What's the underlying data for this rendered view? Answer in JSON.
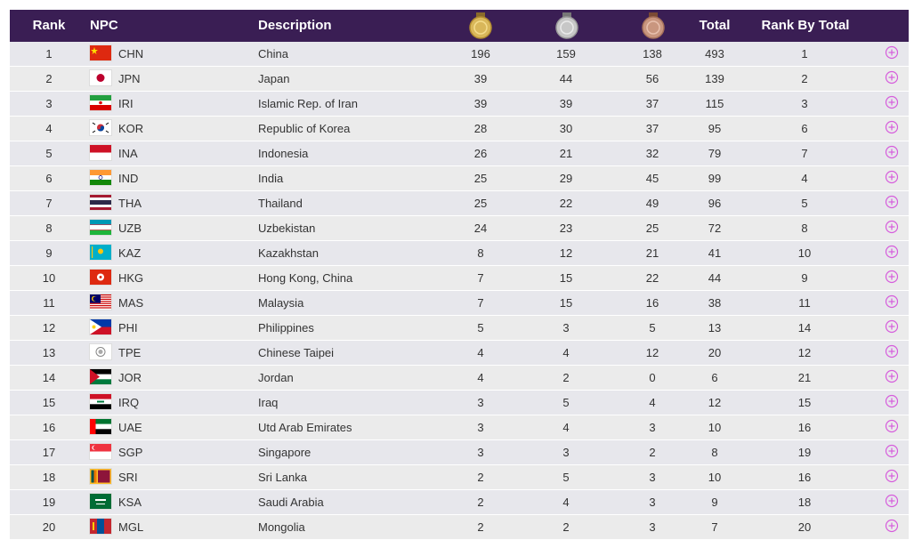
{
  "header": {
    "rank": "Rank",
    "npc": "NPC",
    "description": "Description",
    "gold_icon": "gold-medal",
    "silver_icon": "silver-medal",
    "bronze_icon": "bronze-medal",
    "total": "Total",
    "rank_by_total": "Rank By Total"
  },
  "colors": {
    "header_bg": "#3a1e54",
    "plus": "#d65cdc"
  },
  "rows": [
    {
      "rank": "1",
      "code": "CHN",
      "desc": "China",
      "gold": "196",
      "silver": "159",
      "bronze": "138",
      "total": "493",
      "rbt": "1"
    },
    {
      "rank": "2",
      "code": "JPN",
      "desc": "Japan",
      "gold": "39",
      "silver": "44",
      "bronze": "56",
      "total": "139",
      "rbt": "2"
    },
    {
      "rank": "3",
      "code": "IRI",
      "desc": "Islamic Rep. of Iran",
      "gold": "39",
      "silver": "39",
      "bronze": "37",
      "total": "115",
      "rbt": "3"
    },
    {
      "rank": "4",
      "code": "KOR",
      "desc": "Republic of Korea",
      "gold": "28",
      "silver": "30",
      "bronze": "37",
      "total": "95",
      "rbt": "6"
    },
    {
      "rank": "5",
      "code": "INA",
      "desc": "Indonesia",
      "gold": "26",
      "silver": "21",
      "bronze": "32",
      "total": "79",
      "rbt": "7"
    },
    {
      "rank": "6",
      "code": "IND",
      "desc": "India",
      "gold": "25",
      "silver": "29",
      "bronze": "45",
      "total": "99",
      "rbt": "4"
    },
    {
      "rank": "7",
      "code": "THA",
      "desc": "Thailand",
      "gold": "25",
      "silver": "22",
      "bronze": "49",
      "total": "96",
      "rbt": "5"
    },
    {
      "rank": "8",
      "code": "UZB",
      "desc": "Uzbekistan",
      "gold": "24",
      "silver": "23",
      "bronze": "25",
      "total": "72",
      "rbt": "8"
    },
    {
      "rank": "9",
      "code": "KAZ",
      "desc": "Kazakhstan",
      "gold": "8",
      "silver": "12",
      "bronze": "21",
      "total": "41",
      "rbt": "10"
    },
    {
      "rank": "10",
      "code": "HKG",
      "desc": "Hong Kong, China",
      "gold": "7",
      "silver": "15",
      "bronze": "22",
      "total": "44",
      "rbt": "9"
    },
    {
      "rank": "11",
      "code": "MAS",
      "desc": "Malaysia",
      "gold": "7",
      "silver": "15",
      "bronze": "16",
      "total": "38",
      "rbt": "11"
    },
    {
      "rank": "12",
      "code": "PHI",
      "desc": "Philippines",
      "gold": "5",
      "silver": "3",
      "bronze": "5",
      "total": "13",
      "rbt": "14"
    },
    {
      "rank": "13",
      "code": "TPE",
      "desc": "Chinese Taipei",
      "gold": "4",
      "silver": "4",
      "bronze": "12",
      "total": "20",
      "rbt": "12"
    },
    {
      "rank": "14",
      "code": "JOR",
      "desc": "Jordan",
      "gold": "4",
      "silver": "2",
      "bronze": "0",
      "total": "6",
      "rbt": "21"
    },
    {
      "rank": "15",
      "code": "IRQ",
      "desc": "Iraq",
      "gold": "3",
      "silver": "5",
      "bronze": "4",
      "total": "12",
      "rbt": "15"
    },
    {
      "rank": "16",
      "code": "UAE",
      "desc": "Utd Arab Emirates",
      "gold": "3",
      "silver": "4",
      "bronze": "3",
      "total": "10",
      "rbt": "16"
    },
    {
      "rank": "17",
      "code": "SGP",
      "desc": "Singapore",
      "gold": "3",
      "silver": "3",
      "bronze": "2",
      "total": "8",
      "rbt": "19"
    },
    {
      "rank": "18",
      "code": "SRI",
      "desc": "Sri Lanka",
      "gold": "2",
      "silver": "5",
      "bronze": "3",
      "total": "10",
      "rbt": "16"
    },
    {
      "rank": "19",
      "code": "KSA",
      "desc": "Saudi Arabia",
      "gold": "2",
      "silver": "4",
      "bronze": "3",
      "total": "9",
      "rbt": "18"
    },
    {
      "rank": "20",
      "code": "MGL",
      "desc": "Mongolia",
      "gold": "2",
      "silver": "2",
      "bronze": "3",
      "total": "7",
      "rbt": "20"
    }
  ]
}
